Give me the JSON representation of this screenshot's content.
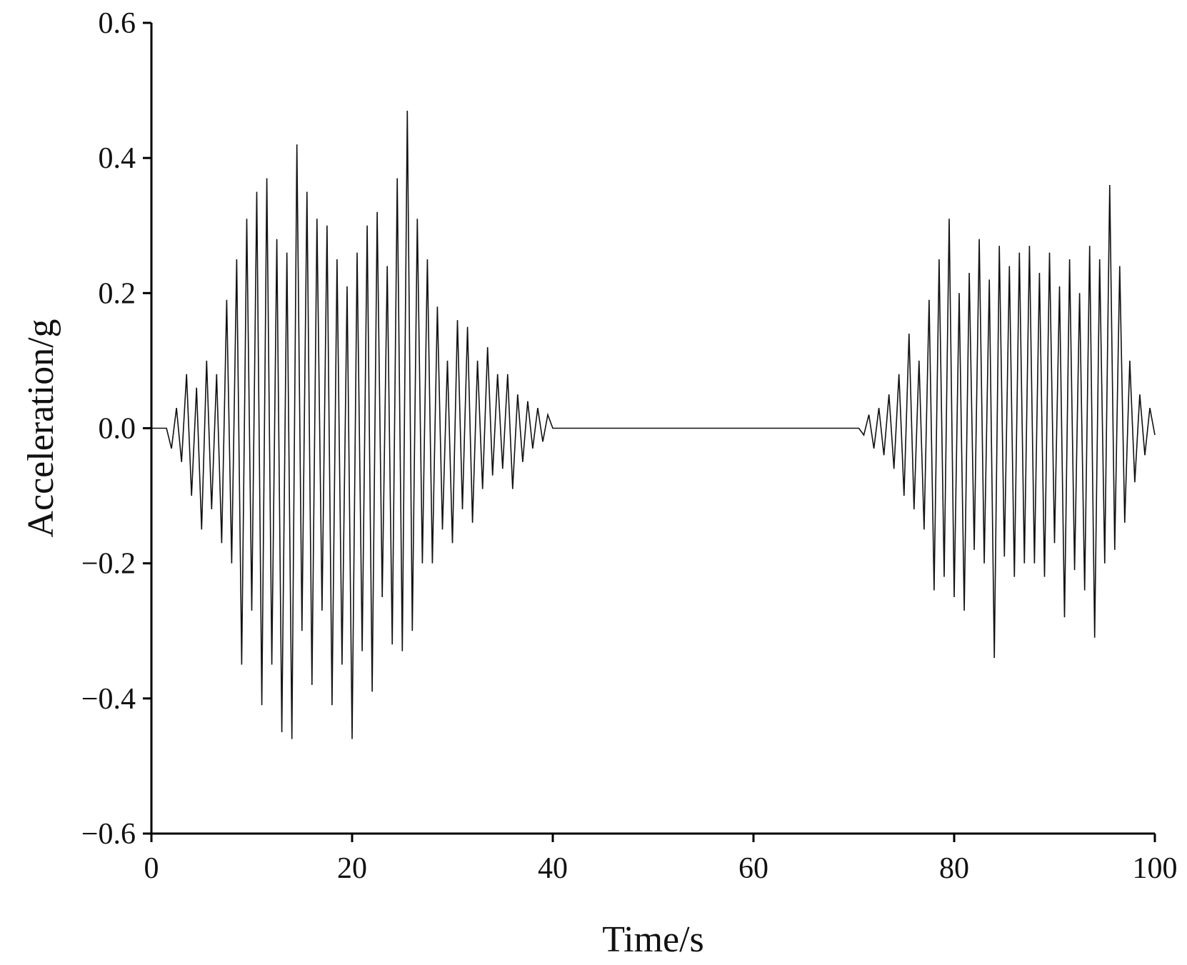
{
  "chart_data": {
    "type": "line",
    "title": "",
    "xlabel": "Time/s",
    "ylabel": "Acceleration/g",
    "xlim": [
      0,
      100
    ],
    "ylim": [
      -0.6,
      0.6
    ],
    "x_ticks": [
      0,
      20,
      40,
      60,
      80,
      100
    ],
    "x_tick_labels": [
      "0",
      "20",
      "40",
      "60",
      "80",
      "100"
    ],
    "y_ticks": [
      -0.6,
      -0.4,
      -0.2,
      0.0,
      0.2,
      0.4,
      0.6
    ],
    "y_tick_labels": [
      "−0.6",
      "−0.4",
      "−0.2",
      "0.0",
      "0.2",
      "0.4",
      "0.6"
    ],
    "grid": false,
    "line_color": "#111111",
    "series": [
      {
        "x": [
          0,
          1.5,
          2,
          2.5,
          3,
          3.5,
          4,
          4.5,
          5,
          5.5,
          6,
          6.5,
          7,
          7.5,
          8,
          8.5,
          9,
          9.5,
          10,
          10.5,
          11,
          11.5,
          12,
          12.5,
          13,
          13.5,
          14,
          14.5,
          15,
          15.5,
          16,
          16.5,
          17,
          17.5,
          18,
          18.5,
          19,
          19.5,
          20,
          20.5,
          21,
          21.5,
          22,
          22.5,
          23,
          23.5,
          24,
          24.5,
          25,
          25.5,
          26,
          26.5,
          27,
          27.5,
          28,
          28.5,
          29,
          29.5,
          30,
          30.5,
          31,
          31.5,
          32,
          32.5,
          33,
          33.5,
          34,
          34.5,
          35,
          35.5,
          36,
          36.5,
          37,
          37.5,
          38,
          38.5,
          39,
          39.5,
          40,
          70,
          70.5,
          71,
          71.5,
          72,
          72.5,
          73,
          73.5,
          74,
          74.5,
          75,
          75.5,
          76,
          76.5,
          77,
          77.5,
          78,
          78.5,
          79,
          79.5,
          80,
          80.5,
          81,
          81.5,
          82,
          82.5,
          83,
          83.5,
          84,
          84.5,
          85,
          85.5,
          86,
          86.5,
          87,
          87.5,
          88,
          88.5,
          89,
          89.5,
          90,
          90.5,
          91,
          91.5,
          92,
          92.5,
          93,
          93.5,
          94,
          94.5,
          95,
          95.5,
          96,
          96.5,
          97,
          97.5,
          98,
          98.5,
          99,
          99.5,
          100
        ],
        "y": [
          0.0,
          0.0,
          -0.03,
          0.03,
          -0.05,
          0.08,
          -0.1,
          0.06,
          -0.15,
          0.1,
          -0.12,
          0.08,
          -0.17,
          0.19,
          -0.2,
          0.25,
          -0.35,
          0.31,
          -0.27,
          0.35,
          -0.41,
          0.37,
          -0.35,
          0.28,
          -0.45,
          0.26,
          -0.46,
          0.42,
          -0.3,
          0.35,
          -0.38,
          0.31,
          -0.27,
          0.3,
          -0.41,
          0.25,
          -0.35,
          0.21,
          -0.46,
          0.26,
          -0.33,
          0.3,
          -0.39,
          0.32,
          -0.25,
          0.24,
          -0.32,
          0.37,
          -0.33,
          0.47,
          -0.3,
          0.31,
          -0.2,
          0.25,
          -0.2,
          0.18,
          -0.15,
          0.1,
          -0.17,
          0.16,
          -0.12,
          0.15,
          -0.14,
          0.1,
          -0.09,
          0.12,
          -0.07,
          0.08,
          -0.06,
          0.08,
          -0.09,
          0.05,
          -0.05,
          0.04,
          -0.03,
          0.03,
          -0.02,
          0.02,
          0.0,
          0.0,
          0.0,
          -0.01,
          0.02,
          -0.03,
          0.03,
          -0.04,
          0.05,
          -0.06,
          0.08,
          -0.1,
          0.14,
          -0.12,
          0.1,
          -0.15,
          0.19,
          -0.24,
          0.25,
          -0.22,
          0.31,
          -0.25,
          0.2,
          -0.27,
          0.23,
          -0.18,
          0.28,
          -0.2,
          0.22,
          -0.34,
          0.27,
          -0.19,
          0.24,
          -0.22,
          0.26,
          -0.2,
          0.27,
          -0.2,
          0.23,
          -0.22,
          0.26,
          -0.17,
          0.21,
          -0.28,
          0.25,
          -0.21,
          0.2,
          -0.24,
          0.27,
          -0.31,
          0.25,
          -0.2,
          0.36,
          -0.18,
          0.24,
          -0.14,
          0.1,
          -0.08,
          0.05,
          -0.04,
          0.03,
          -0.01
        ]
      }
    ]
  }
}
